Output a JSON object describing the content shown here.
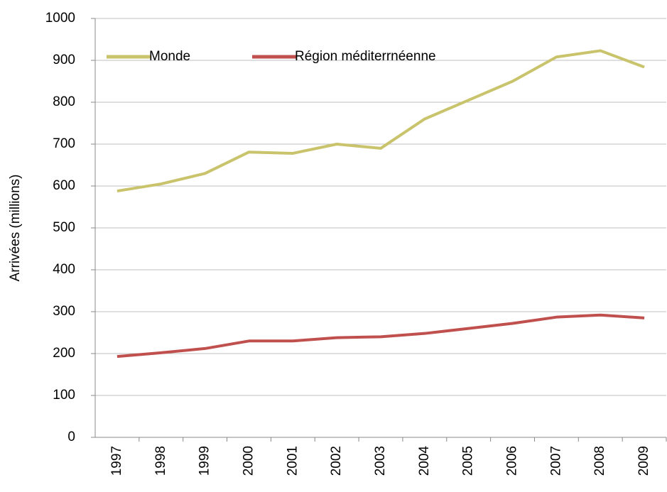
{
  "chart_data": {
    "type": "line",
    "y_label": "Arrivées (millions)",
    "categories": [
      "1997",
      "1998",
      "1999",
      "2000",
      "2001",
      "2002",
      "2003",
      "2004",
      "2005",
      "2006",
      "2007",
      "2008",
      "2009"
    ],
    "series": [
      {
        "name": "Monde",
        "color": "#c9c46c",
        "values": [
          588,
          605,
          630,
          681,
          678,
          700,
          690,
          760,
          805,
          850,
          908,
          923,
          884
        ]
      },
      {
        "name": "Région méditerrnéenne",
        "color": "#c0504d",
        "values": [
          193,
          202,
          212,
          230,
          230,
          238,
          240,
          248,
          260,
          272,
          287,
          292,
          285
        ]
      }
    ],
    "ylim": [
      0,
      1000
    ],
    "yticks": [
      0,
      100,
      200,
      300,
      400,
      500,
      600,
      700,
      800,
      900,
      1000
    ],
    "grid": true,
    "legend": "top"
  }
}
